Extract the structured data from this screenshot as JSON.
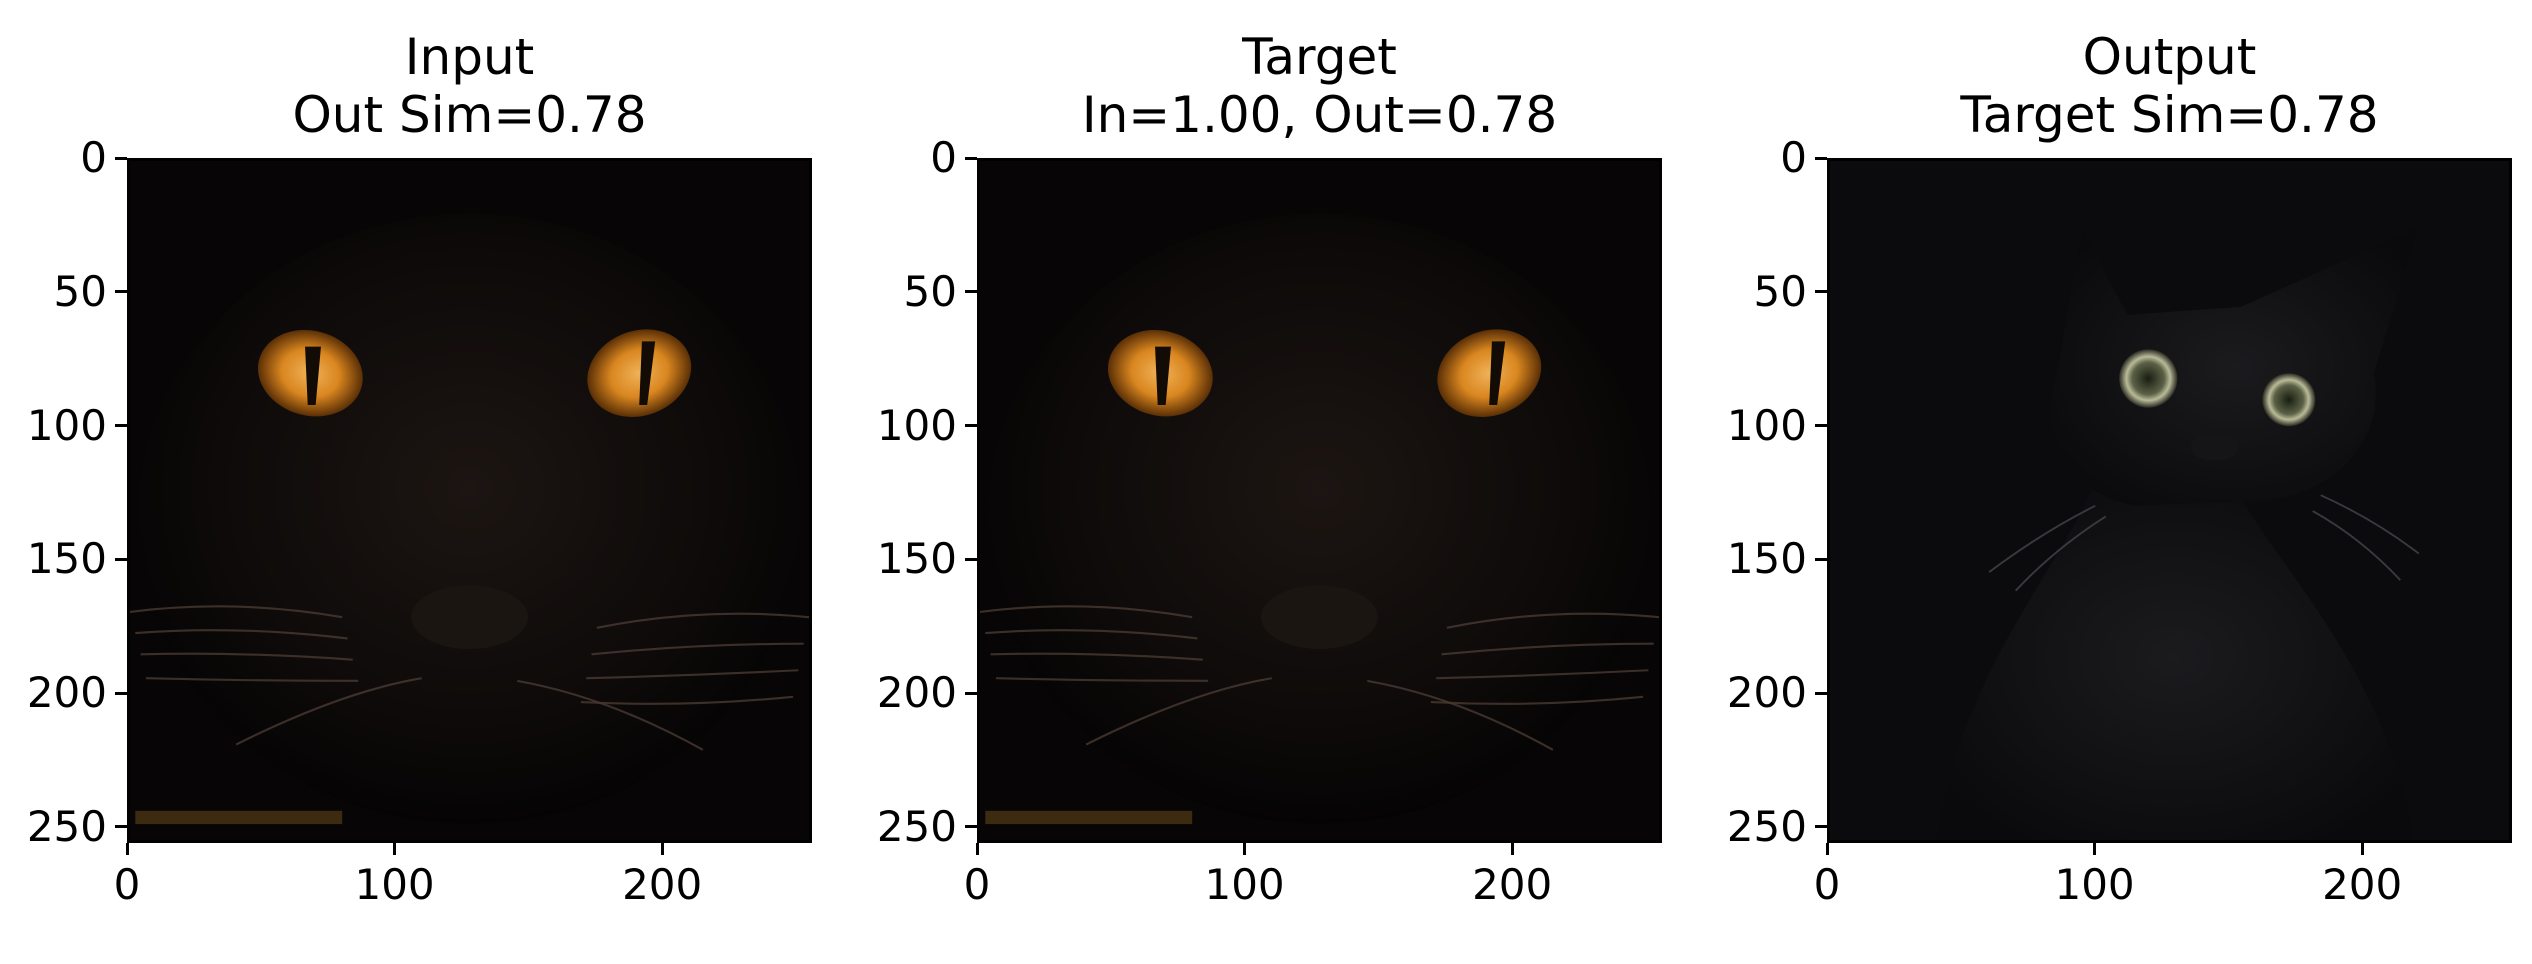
{
  "chart_data": [
    {
      "type": "image",
      "title_line1": "Input",
      "title_line2": "Out Sim=0.78",
      "xlim": [
        0,
        256
      ],
      "ylim": [
        256,
        0
      ],
      "xticks": [
        0,
        100,
        200
      ],
      "yticks": [
        0,
        50,
        100,
        150,
        200,
        250
      ],
      "image_content": "black cat face, glowing orange eyes"
    },
    {
      "type": "image",
      "title_line1": "Target",
      "title_line2": "In=1.00, Out=0.78",
      "xlim": [
        0,
        256
      ],
      "ylim": [
        256,
        0
      ],
      "xticks": [
        0,
        100,
        200
      ],
      "yticks": [
        0,
        50,
        100,
        150,
        200,
        250
      ],
      "image_content": "black cat face, glowing orange eyes"
    },
    {
      "type": "image",
      "title_line1": "Output",
      "title_line2": "Target Sim=0.78",
      "xlim": [
        0,
        256
      ],
      "ylim": [
        256,
        0
      ],
      "xticks": [
        0,
        100,
        200
      ],
      "yticks": [
        0,
        50,
        100,
        150,
        200,
        250
      ],
      "image_content": "full black cat sitting in the dark"
    }
  ]
}
